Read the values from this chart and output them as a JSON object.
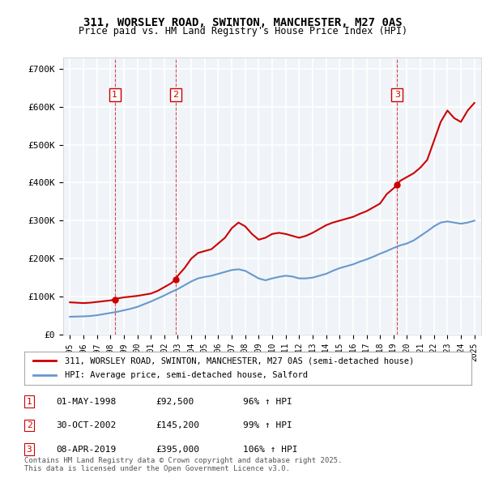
{
  "title": "311, WORSLEY ROAD, SWINTON, MANCHESTER, M27 0AS",
  "subtitle": "Price paid vs. HM Land Registry's House Price Index (HPI)",
  "legend_label_red": "311, WORSLEY ROAD, SWINTON, MANCHESTER, M27 0AS (semi-detached house)",
  "legend_label_blue": "HPI: Average price, semi-detached house, Salford",
  "ylabel_ticks": [
    "£0",
    "£100K",
    "£200K",
    "£300K",
    "£400K",
    "£500K",
    "£600K",
    "£700K"
  ],
  "ytick_values": [
    0,
    100000,
    200000,
    300000,
    400000,
    500000,
    600000,
    700000
  ],
  "ylim": [
    0,
    730000
  ],
  "xlim_start": 1994.5,
  "xlim_end": 2025.5,
  "sale_points": [
    {
      "num": 1,
      "date": "01-MAY-1998",
      "year": 1998.33,
      "price": 92500,
      "pct": "96%",
      "dir": "↑"
    },
    {
      "num": 2,
      "date": "30-OCT-2002",
      "year": 2002.83,
      "price": 145200,
      "pct": "99%",
      "dir": "↑"
    },
    {
      "num": 3,
      "date": "08-APR-2019",
      "year": 2019.27,
      "price": 395000,
      "pct": "106%",
      "dir": "↑"
    }
  ],
  "table_rows": [
    {
      "num": "1",
      "date": "01-MAY-1998",
      "price": "£92,500",
      "pct": "96% ↑ HPI"
    },
    {
      "num": "2",
      "date": "30-OCT-2002",
      "price": "£145,200",
      "pct": "99% ↑ HPI"
    },
    {
      "num": "3",
      "date": "08-APR-2019",
      "price": "£395,000",
      "pct": "106% ↑ HPI"
    }
  ],
  "footer": "Contains HM Land Registry data © Crown copyright and database right 2025.\nThis data is licensed under the Open Government Licence v3.0.",
  "red_color": "#cc0000",
  "blue_color": "#6699cc",
  "marker_box_color": "#cc0000",
  "background_color": "#ffffff",
  "plot_bg_color": "#f0f4f8",
  "grid_color": "#ffffff",
  "vline_color": "#cc0000",
  "vline_style": "--",
  "red_line_data": {
    "years": [
      1995.0,
      1995.5,
      1996.0,
      1996.5,
      1997.0,
      1997.5,
      1998.0,
      1998.33,
      1998.5,
      1999.0,
      1999.5,
      2000.0,
      2000.5,
      2001.0,
      2001.5,
      2002.0,
      2002.5,
      2002.83,
      2003.0,
      2003.5,
      2004.0,
      2004.5,
      2005.0,
      2005.5,
      2006.0,
      2006.5,
      2007.0,
      2007.5,
      2008.0,
      2008.5,
      2009.0,
      2009.5,
      2010.0,
      2010.5,
      2011.0,
      2011.5,
      2012.0,
      2012.5,
      2013.0,
      2013.5,
      2014.0,
      2014.5,
      2015.0,
      2015.5,
      2016.0,
      2016.5,
      2017.0,
      2017.5,
      2018.0,
      2018.5,
      2019.0,
      2019.27,
      2019.5,
      2020.0,
      2020.5,
      2021.0,
      2021.5,
      2022.0,
      2022.5,
      2023.0,
      2023.5,
      2024.0,
      2024.5,
      2025.0
    ],
    "prices": [
      85000,
      84000,
      83000,
      84000,
      86000,
      88000,
      90000,
      92500,
      95000,
      98000,
      100000,
      102000,
      105000,
      108000,
      115000,
      125000,
      135000,
      145200,
      155000,
      175000,
      200000,
      215000,
      220000,
      225000,
      240000,
      255000,
      280000,
      295000,
      285000,
      265000,
      250000,
      255000,
      265000,
      268000,
      265000,
      260000,
      255000,
      260000,
      268000,
      278000,
      288000,
      295000,
      300000,
      305000,
      310000,
      318000,
      325000,
      335000,
      345000,
      370000,
      385000,
      395000,
      405000,
      415000,
      425000,
      440000,
      460000,
      510000,
      560000,
      590000,
      570000,
      560000,
      590000,
      610000
    ]
  },
  "blue_line_data": {
    "years": [
      1995.0,
      1995.5,
      1996.0,
      1996.5,
      1997.0,
      1997.5,
      1998.0,
      1998.5,
      1999.0,
      1999.5,
      2000.0,
      2000.5,
      2001.0,
      2001.5,
      2002.0,
      2002.5,
      2003.0,
      2003.5,
      2004.0,
      2004.5,
      2005.0,
      2005.5,
      2006.0,
      2006.5,
      2007.0,
      2007.5,
      2008.0,
      2008.5,
      2009.0,
      2009.5,
      2010.0,
      2010.5,
      2011.0,
      2011.5,
      2012.0,
      2012.5,
      2013.0,
      2013.5,
      2014.0,
      2014.5,
      2015.0,
      2015.5,
      2016.0,
      2016.5,
      2017.0,
      2017.5,
      2018.0,
      2018.5,
      2019.0,
      2019.5,
      2020.0,
      2020.5,
      2021.0,
      2021.5,
      2022.0,
      2022.5,
      2023.0,
      2023.5,
      2024.0,
      2024.5,
      2025.0
    ],
    "prices": [
      47000,
      47500,
      48000,
      49000,
      51000,
      54000,
      57000,
      60000,
      64000,
      68000,
      73000,
      80000,
      87000,
      95000,
      103000,
      112000,
      120000,
      130000,
      140000,
      148000,
      152000,
      155000,
      160000,
      165000,
      170000,
      172000,
      168000,
      158000,
      148000,
      143000,
      148000,
      152000,
      155000,
      153000,
      148000,
      148000,
      150000,
      155000,
      160000,
      168000,
      175000,
      180000,
      185000,
      192000,
      198000,
      205000,
      213000,
      220000,
      228000,
      235000,
      240000,
      248000,
      260000,
      272000,
      285000,
      295000,
      298000,
      295000,
      292000,
      295000,
      300000
    ]
  }
}
